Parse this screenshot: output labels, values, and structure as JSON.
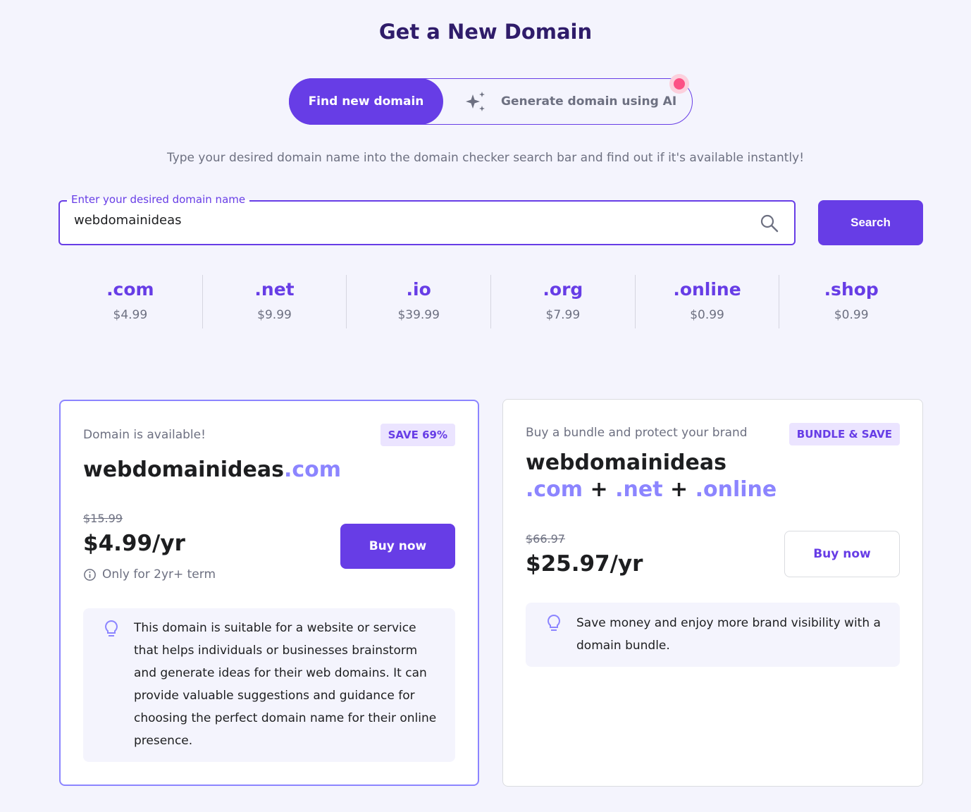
{
  "title": "Get a New Domain",
  "tabs": {
    "find": "Find new domain",
    "ai": "Generate domain using AI"
  },
  "subtitle": "Type your desired domain name into the domain checker search bar and find out if it's available instantly!",
  "search": {
    "label": "Enter your desired domain name",
    "value": "webdomainideas",
    "button": "Search"
  },
  "tlds": [
    {
      "name": ".com",
      "price": "$4.99"
    },
    {
      "name": ".net",
      "price": "$9.99"
    },
    {
      "name": ".io",
      "price": "$39.99"
    },
    {
      "name": ".org",
      "price": "$7.99"
    },
    {
      "name": ".online",
      "price": "$0.99"
    },
    {
      "name": ".shop",
      "price": "$0.99"
    }
  ],
  "card1": {
    "status": "Domain is available!",
    "badge": "SAVE 69%",
    "name": "webdomainideas",
    "ext": ".com",
    "old_price": "$15.99",
    "price": "$4.99/yr",
    "note": "Only for 2yr+ term",
    "buy": "Buy now",
    "tip": "This domain is suitable for a website or service that helps individuals or businesses brainstorm and generate ideas for their web domains. It can provide valuable suggestions and guidance for choosing the perfect domain name for their online presence."
  },
  "card2": {
    "status": "Buy a bundle and protect your brand",
    "badge": "BUNDLE & SAVE",
    "name": "webdomainideas",
    "exts": [
      ".com",
      ".net",
      ".online"
    ],
    "plus": "+",
    "old_price": "$66.97",
    "price": "$25.97/yr",
    "buy": "Buy now",
    "tip": "Save money and enjoy more brand visibility with a domain bundle."
  },
  "colors": {
    "accent": "#673de6",
    "accent_light": "#8c85ff",
    "notification": "#fc5185"
  }
}
